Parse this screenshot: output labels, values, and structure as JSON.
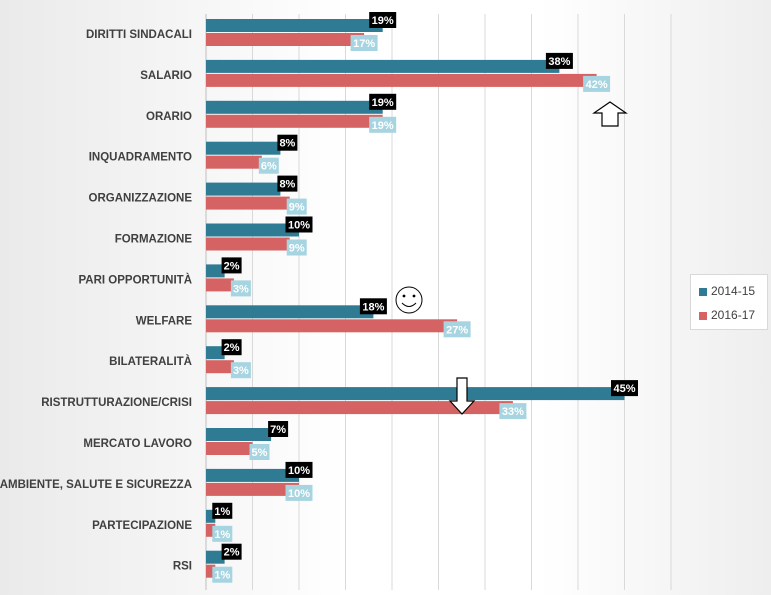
{
  "chart_data": {
    "type": "bar",
    "orientation": "horizontal",
    "categories": [
      "DIRITTI SINDACALI",
      "SALARIO",
      "ORARIO",
      "INQUADRAMENTO",
      "ORGANIZZAZIONE",
      "FORMAZIONE",
      "PARI OPPORTUNITÀ",
      "WELFARE",
      "BILATERALITÀ",
      "RISTRUTTURAZIONE/CRISI",
      "MERCATO LAVORO",
      "AMBIENTE, SALUTE E SICUREZZA",
      "PARTECIPAZIONE",
      "RSI"
    ],
    "series": [
      {
        "name": "2014-15",
        "color": "#2e7b93",
        "label_bg": "#000000",
        "label_color": "#ffffff",
        "values": [
          19,
          38,
          19,
          8,
          8,
          10,
          2,
          18,
          2,
          45,
          7,
          10,
          1,
          2
        ],
        "labels": [
          "19%",
          "38%",
          "19%",
          "8%",
          "8%",
          "10%",
          "2%",
          "18%",
          "2%",
          "45%",
          "7%",
          "10%",
          "1%",
          "2%"
        ]
      },
      {
        "name": "2016-17",
        "color": "#d66363",
        "label_bg": "#a6d4e0",
        "label_color": "#ffffff",
        "values": [
          17,
          42,
          19,
          6,
          9,
          9,
          3,
          27,
          3,
          33,
          5,
          10,
          1,
          1
        ],
        "labels": [
          "17%",
          "42%",
          "19%",
          "6%",
          "9%",
          "9%",
          "3%",
          "27%",
          "3%",
          "33%",
          "5%",
          "10%",
          "1%",
          "1%"
        ]
      }
    ],
    "xlim": [
      0,
      100
    ],
    "grid": true,
    "legend_position": "right",
    "annotations": [
      {
        "kind": "up-arrow",
        "category": "SALARIO"
      },
      {
        "kind": "smiley",
        "category": "WELFARE"
      },
      {
        "kind": "down-arrow",
        "category": "RISTRUTTURAZIONE/CRISI"
      }
    ]
  }
}
